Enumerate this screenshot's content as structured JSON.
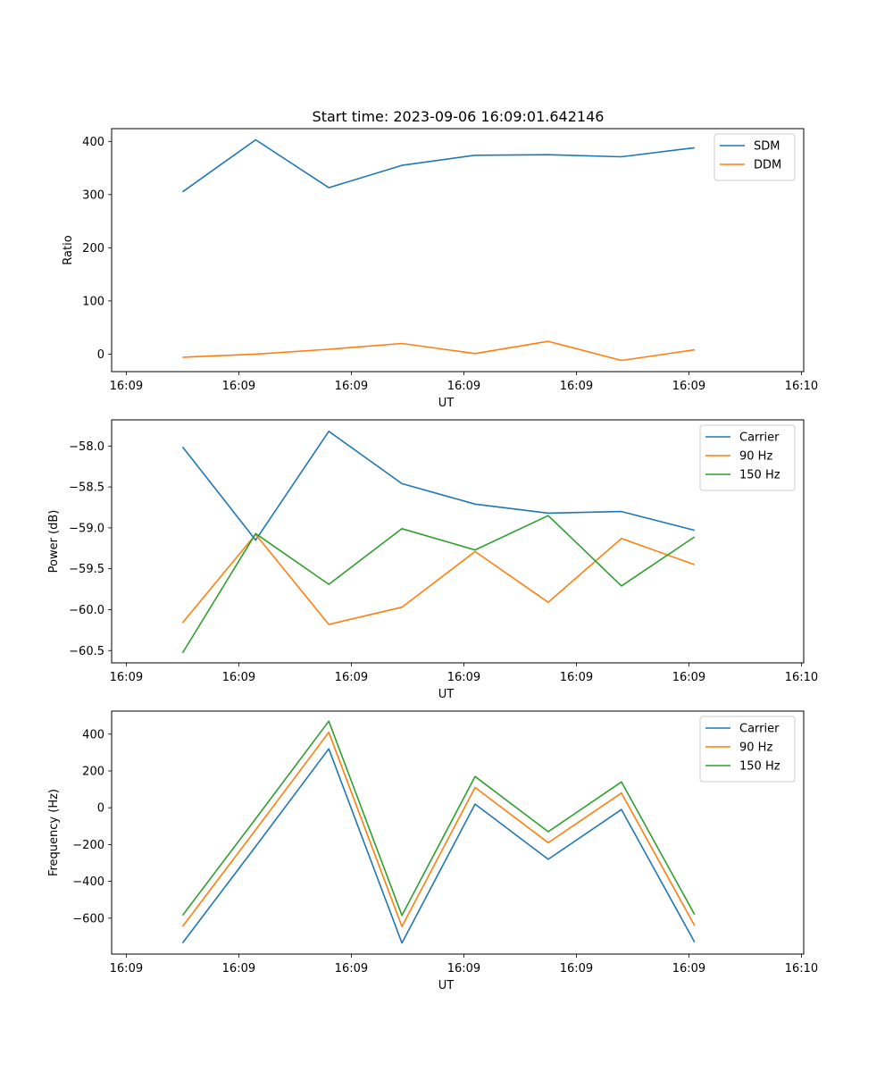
{
  "title": "Start time: 2023-09-06 16:09:01.642146",
  "colors": {
    "c0": "#1f77b4",
    "c1": "#ff7f0e",
    "c2": "#2ca02c"
  },
  "chart_data": [
    {
      "type": "line",
      "title": "Start time: 2023-09-06 16:09:01.642146",
      "xlabel": "UT",
      "ylabel": "Ratio",
      "x_ticks": [
        "16:09",
        "16:09",
        "16:09",
        "16:09",
        "16:09",
        "16:09",
        "16:10"
      ],
      "x_tick_positions": [
        0,
        1,
        2,
        3,
        4,
        5,
        6
      ],
      "xlim": [
        -0.13,
        6.02
      ],
      "x": [
        0.5,
        1.15,
        1.8,
        2.45,
        3.1,
        3.75,
        4.4,
        5.05
      ],
      "ylim": [
        -33,
        424
      ],
      "y_ticks": [
        0,
        100,
        200,
        300,
        400
      ],
      "y_tick_labels": [
        "0",
        "100",
        "200",
        "300",
        "400"
      ],
      "legend_position": "top-right",
      "series": [
        {
          "name": "SDM",
          "color": "#1f77b4",
          "values": [
            305,
            403,
            313,
            355,
            374,
            375,
            371,
            388
          ]
        },
        {
          "name": "DDM",
          "color": "#ff7f0e",
          "values": [
            -6,
            0,
            9,
            20,
            1,
            24,
            -12,
            8
          ]
        }
      ]
    },
    {
      "type": "line",
      "title": "",
      "xlabel": "UT",
      "ylabel": "Power (dB)",
      "x_ticks": [
        "16:09",
        "16:09",
        "16:09",
        "16:09",
        "16:09",
        "16:09",
        "16:10"
      ],
      "x_tick_positions": [
        0,
        1,
        2,
        3,
        4,
        5,
        6
      ],
      "xlim": [
        -0.13,
        6.02
      ],
      "x": [
        0.5,
        1.15,
        1.8,
        2.45,
        3.1,
        3.75,
        4.4,
        5.05
      ],
      "ylim": [
        -60.65,
        -57.68
      ],
      "y_ticks": [
        -60.5,
        -60.0,
        -59.5,
        -59.0,
        -58.5,
        -58.0
      ],
      "y_tick_labels": [
        "−60.5",
        "−60.0",
        "−59.5",
        "−59.0",
        "−58.5",
        "−58.0"
      ],
      "legend_position": "top-right",
      "series": [
        {
          "name": "Carrier",
          "color": "#1f77b4",
          "values": [
            -58.01,
            -59.15,
            -57.82,
            -58.46,
            -58.71,
            -58.82,
            -58.8,
            -59.03
          ]
        },
        {
          "name": "90 Hz",
          "color": "#ff7f0e",
          "values": [
            -60.16,
            -59.08,
            -60.18,
            -59.97,
            -59.29,
            -59.91,
            -59.13,
            -59.45
          ]
        },
        {
          "name": "150 Hz",
          "color": "#2ca02c",
          "values": [
            -60.53,
            -59.07,
            -59.69,
            -59.01,
            -59.27,
            -58.85,
            -59.71,
            -59.11
          ]
        }
      ]
    },
    {
      "type": "line",
      "title": "",
      "xlabel": "UT",
      "ylabel": "Frequency (Hz)",
      "x_ticks": [
        "16:09",
        "16:09",
        "16:09",
        "16:09",
        "16:09",
        "16:09",
        "16:10"
      ],
      "x_tick_positions": [
        0,
        1,
        2,
        3,
        4,
        5,
        6
      ],
      "xlim": [
        -0.13,
        6.02
      ],
      "x": [
        0.5,
        1.15,
        1.8,
        2.45,
        3.1,
        3.75,
        4.4,
        5.05
      ],
      "ylim": [
        -795,
        525
      ],
      "y_ticks": [
        -600,
        -400,
        -200,
        0,
        200,
        400
      ],
      "y_tick_labels": [
        "−600",
        "−400",
        "−200",
        "0",
        "200",
        "400"
      ],
      "legend_position": "top-right",
      "series": [
        {
          "name": "Carrier",
          "color": "#1f77b4",
          "values": [
            -735,
            -210,
            320,
            -735,
            20,
            -280,
            -10,
            -730
          ]
        },
        {
          "name": "90 Hz",
          "color": "#ff7f0e",
          "values": [
            -645,
            -120,
            410,
            -645,
            110,
            -190,
            80,
            -640
          ]
        },
        {
          "name": "150 Hz",
          "color": "#2ca02c",
          "values": [
            -585,
            -60,
            470,
            -585,
            170,
            -130,
            140,
            -580
          ]
        }
      ]
    }
  ]
}
